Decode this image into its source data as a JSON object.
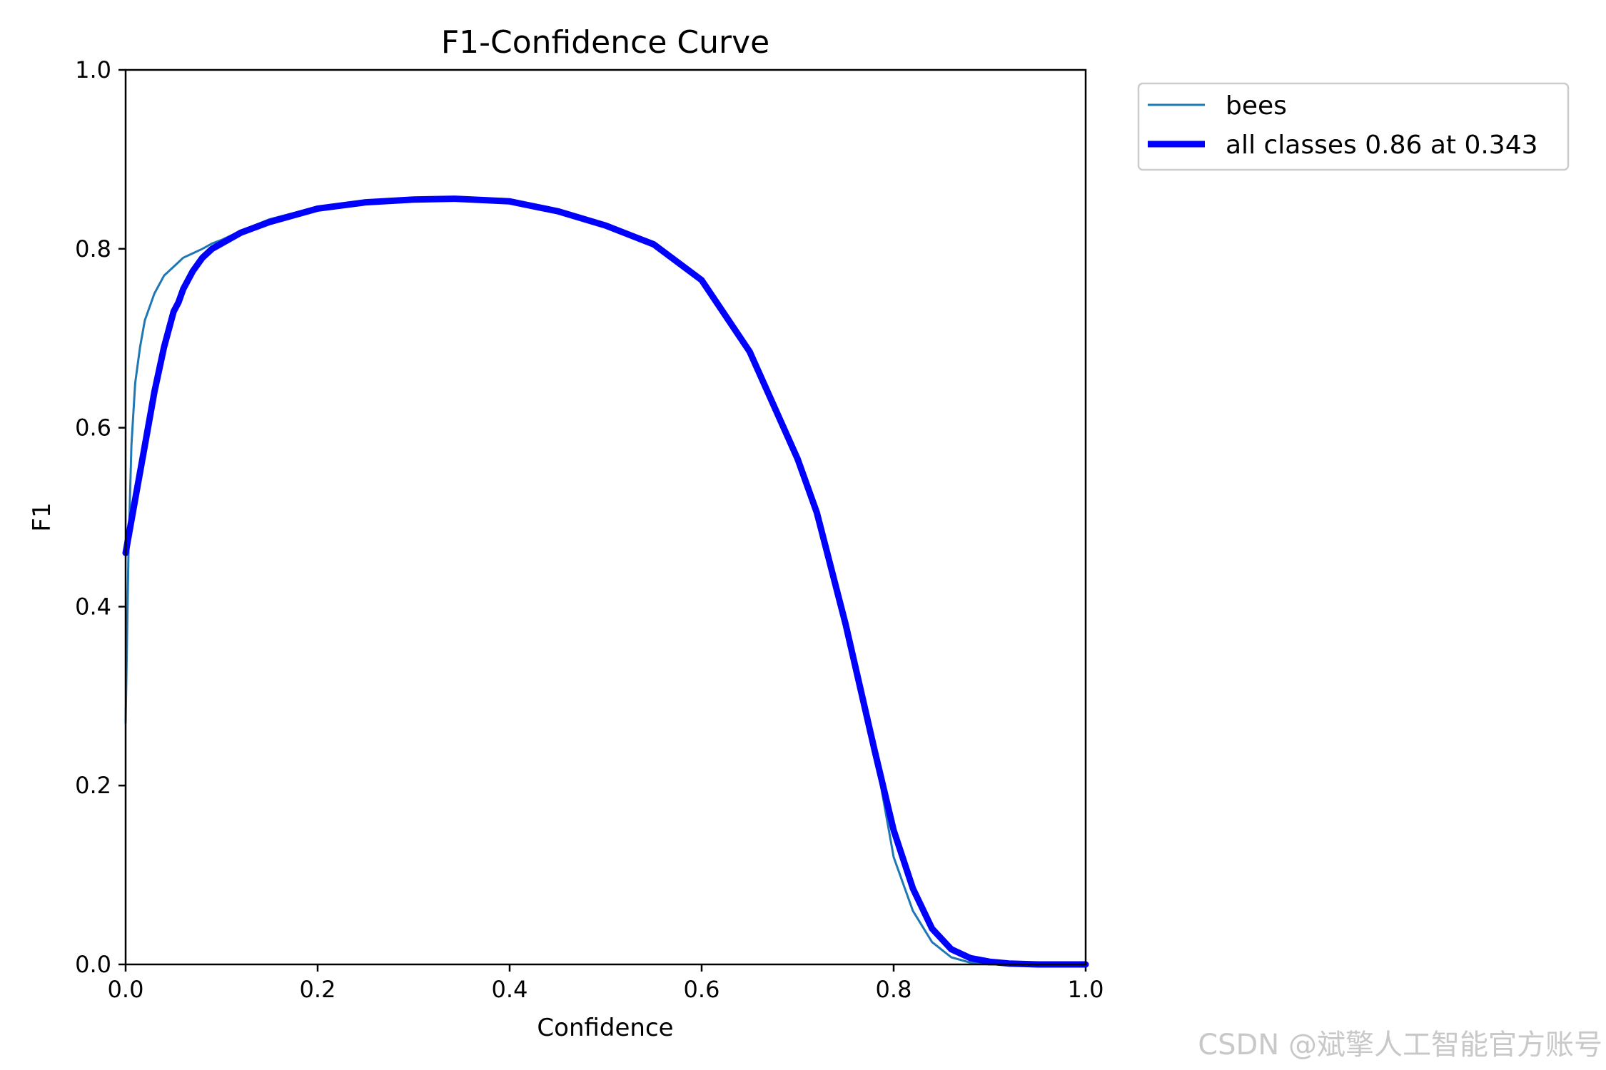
{
  "chart_data": {
    "type": "line",
    "title": "F1-Confidence Curve",
    "xlabel": "Confidence",
    "ylabel": "F1",
    "xlim": [
      0.0,
      1.0
    ],
    "ylim": [
      0.0,
      1.0
    ],
    "xticks": [
      "0.0",
      "0.2",
      "0.4",
      "0.6",
      "0.8",
      "1.0"
    ],
    "yticks": [
      "0.0",
      "0.2",
      "0.4",
      "0.6",
      "0.8",
      "1.0"
    ],
    "grid": false,
    "legend_position": "outside-top-right",
    "series": [
      {
        "name": "bees",
        "color": "#1f77b4",
        "x": [
          0.0,
          0.003,
          0.006,
          0.01,
          0.015,
          0.02,
          0.03,
          0.04,
          0.05,
          0.06,
          0.07,
          0.08,
          0.09,
          0.1,
          0.12,
          0.15,
          0.2,
          0.25,
          0.3,
          0.343,
          0.4,
          0.45,
          0.5,
          0.55,
          0.6,
          0.65,
          0.7,
          0.72,
          0.75,
          0.78,
          0.8,
          0.82,
          0.84,
          0.86,
          0.88,
          0.9,
          0.95,
          1.0
        ],
        "y": [
          0.27,
          0.46,
          0.58,
          0.65,
          0.69,
          0.72,
          0.75,
          0.77,
          0.78,
          0.79,
          0.795,
          0.8,
          0.806,
          0.81,
          0.82,
          0.833,
          0.847,
          0.853,
          0.856,
          0.857,
          0.853,
          0.842,
          0.826,
          0.806,
          0.765,
          0.685,
          0.565,
          0.505,
          0.385,
          0.24,
          0.12,
          0.06,
          0.025,
          0.008,
          0.002,
          0.0,
          0.0,
          0.0
        ]
      },
      {
        "name": "all classes 0.86 at 0.343",
        "color": "#0000ff",
        "x": [
          0.0,
          0.01,
          0.02,
          0.03,
          0.04,
          0.05,
          0.055,
          0.06,
          0.07,
          0.08,
          0.09,
          0.1,
          0.12,
          0.15,
          0.2,
          0.25,
          0.3,
          0.343,
          0.4,
          0.45,
          0.5,
          0.55,
          0.6,
          0.65,
          0.7,
          0.72,
          0.75,
          0.78,
          0.8,
          0.82,
          0.84,
          0.86,
          0.88,
          0.9,
          0.92,
          0.95,
          1.0
        ],
        "y": [
          0.46,
          0.52,
          0.58,
          0.64,
          0.69,
          0.73,
          0.74,
          0.755,
          0.775,
          0.79,
          0.8,
          0.806,
          0.818,
          0.83,
          0.845,
          0.852,
          0.855,
          0.856,
          0.853,
          0.842,
          0.826,
          0.805,
          0.765,
          0.685,
          0.565,
          0.505,
          0.38,
          0.24,
          0.15,
          0.085,
          0.04,
          0.017,
          0.007,
          0.003,
          0.001,
          0.0,
          0.0
        ]
      }
    ]
  },
  "watermark": "CSDN @斌擎人工智能官方账号"
}
